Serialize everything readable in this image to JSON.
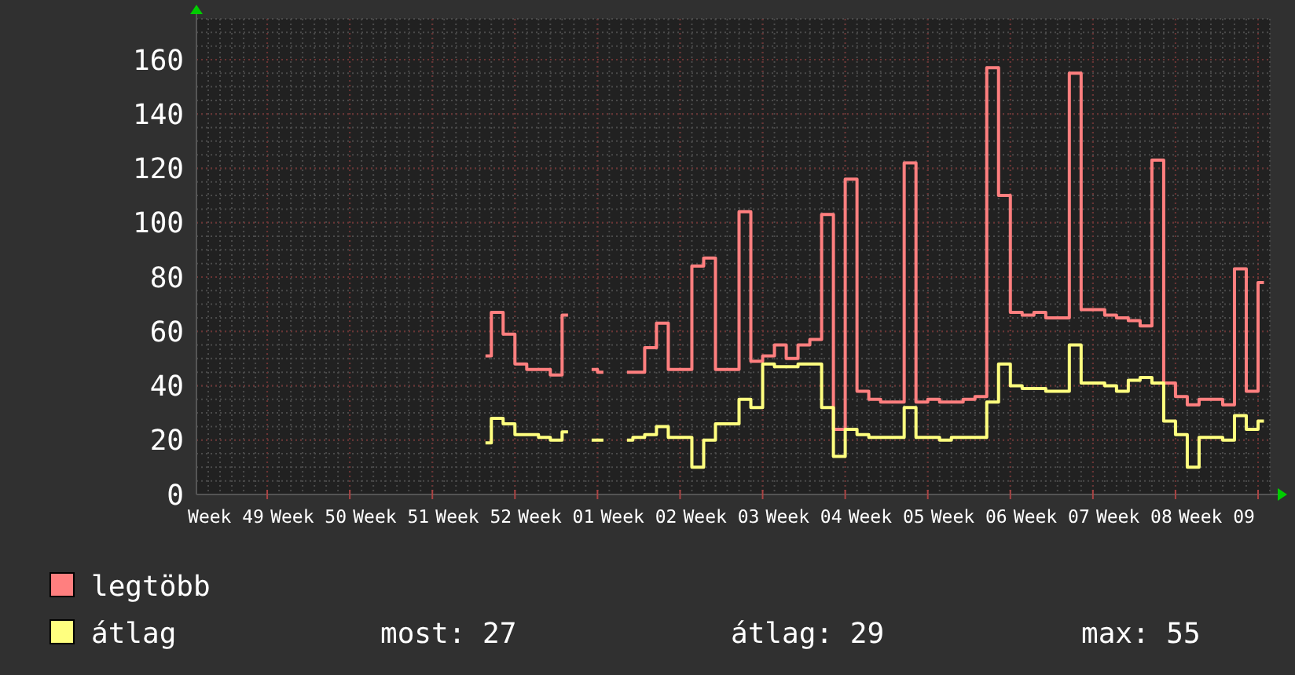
{
  "chart_data": {
    "type": "step",
    "categories": [
      null,
      null,
      "Week 49",
      null,
      null,
      null,
      null,
      null,
      null,
      "Week 50",
      null,
      null,
      null,
      null,
      null,
      null,
      "Week 51",
      null,
      null,
      null,
      null,
      null,
      null,
      "Week 52",
      null,
      null,
      null,
      null,
      null,
      null,
      "Week 01",
      null,
      null,
      null,
      null,
      null,
      null,
      "Week 02",
      null,
      null,
      null,
      null,
      null,
      null,
      "Week 03",
      null,
      null,
      null,
      null,
      null,
      null,
      "Week 04",
      null,
      null,
      null,
      null,
      null,
      null,
      "Week 05",
      null,
      null,
      null,
      null,
      null,
      null,
      "Week 06",
      null,
      null,
      null,
      null,
      null,
      null,
      "Week 07",
      null,
      null,
      null,
      null,
      null,
      null,
      "Week 08",
      null,
      null,
      null,
      null,
      null,
      null,
      "Week 09",
      null,
      null,
      null,
      null
    ],
    "series": [
      {
        "name": "legtöbb",
        "color": "#ff7f7f",
        "values": [
          null,
          null,
          null,
          null,
          null,
          null,
          null,
          null,
          null,
          null,
          null,
          null,
          null,
          null,
          null,
          null,
          null,
          null,
          null,
          null,
          null,
          null,
          null,
          null,
          51,
          67,
          59,
          48,
          46,
          46,
          44,
          66,
          null,
          46,
          45,
          null,
          45,
          45,
          54,
          63,
          46,
          46,
          84,
          87,
          46,
          46,
          104,
          49,
          51,
          55,
          50,
          55,
          57,
          103,
          24,
          116,
          38,
          35,
          34,
          34,
          122,
          34,
          35,
          34,
          34,
          35,
          36,
          157,
          110,
          67,
          66,
          67,
          65,
          65,
          155,
          68,
          68,
          66,
          65,
          64,
          62,
          123,
          41,
          36,
          33,
          35,
          35,
          33,
          83,
          38,
          78
        ]
      },
      {
        "name": "átlag",
        "color": "#ffff7f",
        "values": [
          null,
          null,
          null,
          null,
          null,
          null,
          null,
          null,
          null,
          null,
          null,
          null,
          null,
          null,
          null,
          null,
          null,
          null,
          null,
          null,
          null,
          null,
          null,
          null,
          19,
          28,
          26,
          22,
          22,
          21,
          20,
          23,
          null,
          20,
          20,
          null,
          20,
          21,
          22,
          25,
          21,
          21,
          10,
          20,
          26,
          26,
          35,
          32,
          48,
          47,
          47,
          48,
          48,
          32,
          14,
          24,
          22,
          21,
          21,
          21,
          32,
          21,
          21,
          20,
          21,
          21,
          21,
          34,
          48,
          40,
          39,
          39,
          38,
          38,
          55,
          41,
          41,
          40,
          38,
          42,
          43,
          41,
          27,
          22,
          10,
          21,
          21,
          20,
          29,
          24,
          27
        ]
      }
    ],
    "ylim": [
      0,
      175
    ],
    "yticks": [
      0,
      20,
      40,
      60,
      80,
      100,
      120,
      140,
      160
    ],
    "grid": true,
    "legend": "bottom left",
    "annotations": [
      "most: 27",
      "átlag: 29",
      "max: 55"
    ]
  }
}
